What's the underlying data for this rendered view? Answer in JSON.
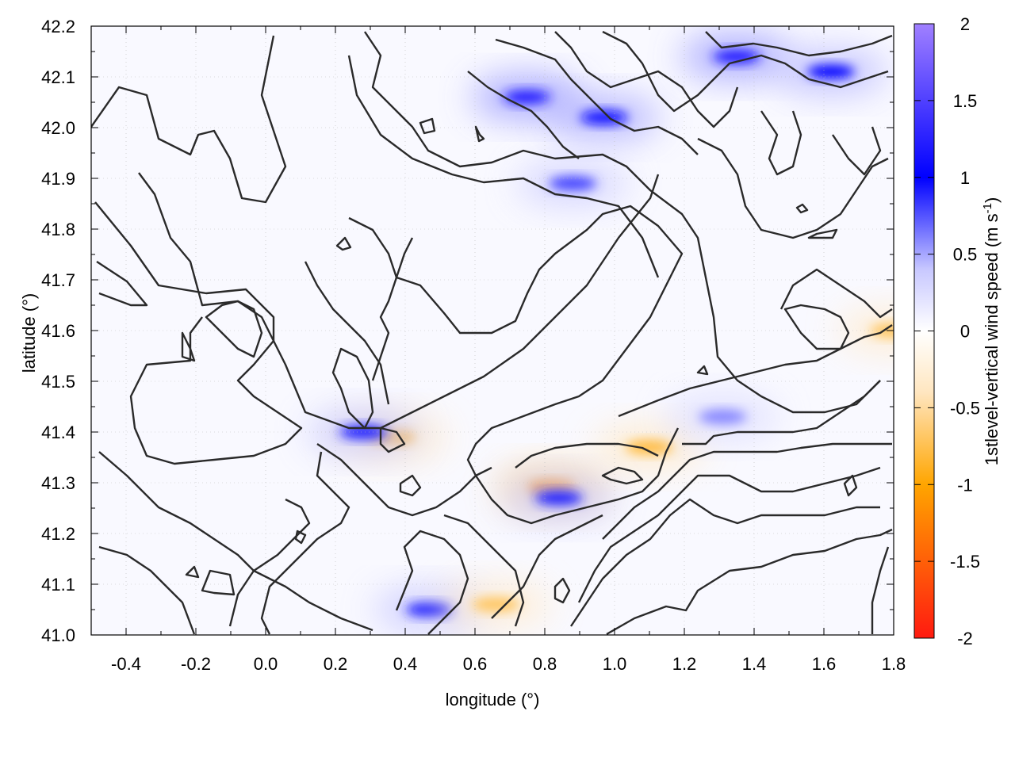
{
  "chart_data": {
    "type": "heatmap",
    "xlabel": "longitude (°)",
    "ylabel": "latitude (°)",
    "colorbar_label": "1stlevel-vertical wind speed (m s-1)",
    "colorbar_label_parts": {
      "main": "1stlevel-vertical wind speed (m s",
      "sup": "-1",
      "end": ")"
    },
    "xlim": [
      -0.5,
      1.8
    ],
    "ylim": [
      41.0,
      42.2
    ],
    "x_ticks": [
      "-0.4",
      "-0.2",
      "0.0",
      "0.2",
      "0.4",
      "0.6",
      "0.8",
      "1.0",
      "1.2",
      "1.4",
      "1.6",
      "1.8"
    ],
    "x_tick_values": [
      -0.4,
      -0.2,
      0.0,
      0.2,
      0.4,
      0.6,
      0.8,
      1.0,
      1.2,
      1.4,
      1.6,
      1.8
    ],
    "y_ticks": [
      "41.0",
      "41.1",
      "41.2",
      "41.3",
      "41.4",
      "41.5",
      "41.6",
      "41.7",
      "41.8",
      "41.9",
      "42.0",
      "42.1",
      "42.2"
    ],
    "y_tick_values": [
      41.0,
      41.1,
      41.2,
      41.3,
      41.4,
      41.5,
      41.6,
      41.7,
      41.8,
      41.9,
      42.0,
      42.1,
      42.2
    ],
    "colorbar_range": [
      -2,
      2
    ],
    "colorbar_ticks": [
      "2",
      "1.5",
      "1",
      "0.5",
      "0",
      "-0.5",
      "-1",
      "-1.5",
      "-2"
    ],
    "colorbar_tick_values": [
      2,
      1.5,
      1,
      0.5,
      0,
      -0.5,
      -1,
      -1.5,
      -2
    ],
    "colormap": [
      {
        "value": -2,
        "color": "#ff1a10"
      },
      {
        "value": -1,
        "color": "#ffa500"
      },
      {
        "value": -0.4,
        "color": "#ffe6c0"
      },
      {
        "value": 0,
        "color": "#ffffff"
      },
      {
        "value": 0.4,
        "color": "#c8c8ff"
      },
      {
        "value": 1,
        "color": "#0000ff"
      },
      {
        "value": 2,
        "color": "#a080ff"
      }
    ],
    "grid": true,
    "contour_color": "#2a2a2a",
    "hotspots": [
      {
        "lon": 0.82,
        "lat": 41.29,
        "value": -1.2
      },
      {
        "lon": 0.84,
        "lat": 41.27,
        "value": 0.9
      },
      {
        "lon": 0.36,
        "lat": 41.39,
        "value": -0.8
      },
      {
        "lon": 0.28,
        "lat": 41.4,
        "value": 0.9
      },
      {
        "lon": 0.75,
        "lat": 42.06,
        "value": 1.2
      },
      {
        "lon": 0.97,
        "lat": 42.02,
        "value": 1.1
      },
      {
        "lon": 1.35,
        "lat": 42.14,
        "value": 1.2
      },
      {
        "lon": 1.62,
        "lat": 42.11,
        "value": 1.0
      },
      {
        "lon": 0.88,
        "lat": 41.89,
        "value": 0.8
      },
      {
        "lon": 1.1,
        "lat": 41.37,
        "value": -0.8
      },
      {
        "lon": 0.47,
        "lat": 41.05,
        "value": 0.9
      },
      {
        "lon": 0.66,
        "lat": 41.06,
        "value": -0.7
      },
      {
        "lon": 1.31,
        "lat": 41.43,
        "value": 0.6
      },
      {
        "lon": 1.8,
        "lat": 41.6,
        "value": -0.7
      }
    ]
  }
}
